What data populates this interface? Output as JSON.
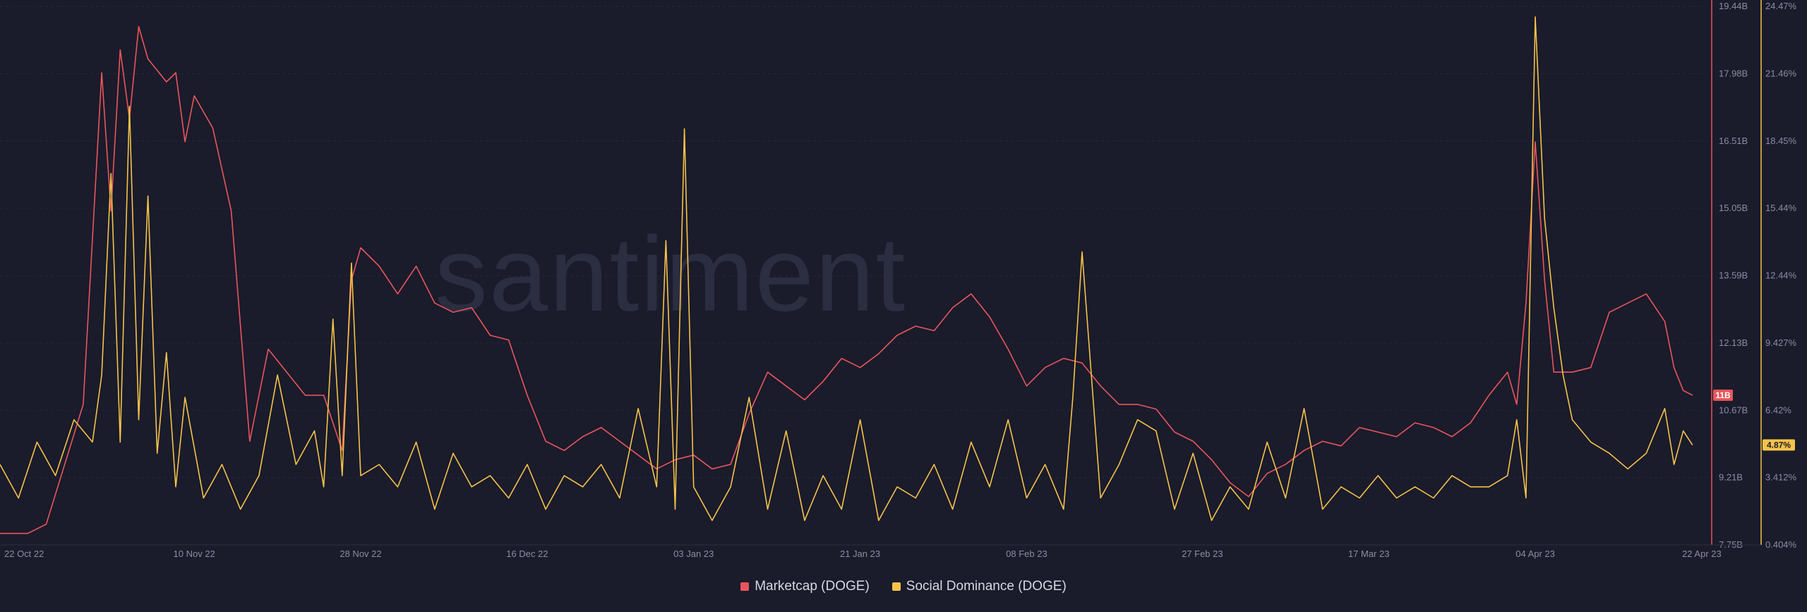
{
  "chart_data": {
    "type": "line",
    "watermark": "santiment",
    "x_ticks": [
      "22 Oct 22",
      "10 Nov 22",
      "28 Nov 22",
      "16 Dec 22",
      "03 Jan 23",
      "21 Jan 23",
      "08 Feb 23",
      "27 Feb 23",
      "17 Mar 23",
      "04 Apr 23",
      "22 Apr 23"
    ],
    "y_left": {
      "ticks": [
        "19.44B",
        "17.98B",
        "16.51B",
        "15.05B",
        "13.59B",
        "12.13B",
        "10.67B",
        "9.21B",
        "7.75B"
      ],
      "range": [
        7.75,
        19.44
      ],
      "unit": "B"
    },
    "y_right": {
      "ticks": [
        "24.47%",
        "21.46%",
        "18.45%",
        "15.44%",
        "12.44%",
        "9.427%",
        "6.42%",
        "3.412%",
        "0.404%"
      ],
      "range": [
        0.404,
        24.47
      ],
      "unit": "%"
    },
    "grid": true,
    "legend_position": "bottom-center",
    "series": [
      {
        "name": "Marketcap (DOGE)",
        "axis": "left",
        "color": "#e8565b",
        "last_value_label": "11B",
        "x": [
          "2022-10-20",
          "2022-10-23",
          "2022-10-25",
          "2022-10-27",
          "2022-10-29",
          "2022-10-31",
          "2022-11-01",
          "2022-11-02",
          "2022-11-03",
          "2022-11-04",
          "2022-11-05",
          "2022-11-07",
          "2022-11-08",
          "2022-11-09",
          "2022-11-10",
          "2022-11-12",
          "2022-11-14",
          "2022-11-16",
          "2022-11-18",
          "2022-11-20",
          "2022-11-22",
          "2022-11-24",
          "2022-11-26",
          "2022-11-27",
          "2022-11-28",
          "2022-11-30",
          "2022-12-02",
          "2022-12-04",
          "2022-12-06",
          "2022-12-08",
          "2022-12-10",
          "2022-12-12",
          "2022-12-14",
          "2022-12-16",
          "2022-12-18",
          "2022-12-20",
          "2022-12-22",
          "2022-12-24",
          "2022-12-26",
          "2022-12-28",
          "2022-12-30",
          "2023-01-01",
          "2023-01-03",
          "2023-01-05",
          "2023-01-07",
          "2023-01-09",
          "2023-01-11",
          "2023-01-13",
          "2023-01-15",
          "2023-01-17",
          "2023-01-19",
          "2023-01-21",
          "2023-01-23",
          "2023-01-25",
          "2023-01-27",
          "2023-01-29",
          "2023-01-31",
          "2023-02-02",
          "2023-02-04",
          "2023-02-06",
          "2023-02-08",
          "2023-02-10",
          "2023-02-12",
          "2023-02-14",
          "2023-02-16",
          "2023-02-18",
          "2023-02-20",
          "2023-02-22",
          "2023-02-24",
          "2023-02-26",
          "2023-02-28",
          "2023-03-02",
          "2023-03-04",
          "2023-03-06",
          "2023-03-08",
          "2023-03-10",
          "2023-03-12",
          "2023-03-14",
          "2023-03-16",
          "2023-03-18",
          "2023-03-20",
          "2023-03-22",
          "2023-03-24",
          "2023-03-26",
          "2023-03-28",
          "2023-03-30",
          "2023-04-01",
          "2023-04-02",
          "2023-04-03",
          "2023-04-04",
          "2023-04-05",
          "2023-04-06",
          "2023-04-08",
          "2023-04-10",
          "2023-04-12",
          "2023-04-14",
          "2023-04-16",
          "2023-04-18",
          "2023-04-19",
          "2023-04-20",
          "2023-04-21"
        ],
        "values": [
          8.0,
          8.0,
          8.2,
          9.5,
          10.8,
          18.0,
          15.0,
          18.5,
          17.0,
          19.0,
          18.3,
          17.8,
          18.0,
          16.5,
          17.5,
          16.8,
          15.0,
          10.0,
          12.0,
          11.5,
          11.0,
          11.0,
          9.8,
          13.5,
          14.2,
          13.8,
          13.2,
          13.8,
          13.0,
          12.8,
          12.9,
          12.3,
          12.2,
          11.0,
          10.0,
          9.8,
          10.1,
          10.3,
          10.0,
          9.7,
          9.4,
          9.6,
          9.7,
          9.4,
          9.5,
          10.6,
          11.5,
          11.2,
          10.9,
          11.3,
          11.8,
          11.6,
          11.9,
          12.3,
          12.5,
          12.4,
          12.9,
          13.2,
          12.7,
          12.0,
          11.2,
          11.6,
          11.8,
          11.7,
          11.2,
          10.8,
          10.8,
          10.7,
          10.2,
          10.0,
          9.6,
          9.1,
          8.8,
          9.3,
          9.5,
          9.8,
          10.0,
          9.9,
          10.3,
          10.2,
          10.1,
          10.4,
          10.3,
          10.1,
          10.4,
          11.0,
          11.5,
          10.8,
          13.0,
          16.5,
          13.5,
          11.5,
          11.5,
          11.6,
          12.8,
          13.0,
          13.2,
          12.6,
          11.6,
          11.1,
          11.0
        ]
      },
      {
        "name": "Social Dominance (DOGE)",
        "axis": "right",
        "color": "#f5c34a",
        "last_value_label": "4.87%",
        "x": [
          "2022-10-20",
          "2022-10-22",
          "2022-10-24",
          "2022-10-26",
          "2022-10-28",
          "2022-10-30",
          "2022-10-31",
          "2022-11-01",
          "2022-11-02",
          "2022-11-03",
          "2022-11-04",
          "2022-11-05",
          "2022-11-06",
          "2022-11-07",
          "2022-11-08",
          "2022-11-09",
          "2022-11-11",
          "2022-11-13",
          "2022-11-15",
          "2022-11-17",
          "2022-11-19",
          "2022-11-21",
          "2022-11-23",
          "2022-11-24",
          "2022-11-25",
          "2022-11-26",
          "2022-11-27",
          "2022-11-28",
          "2022-11-30",
          "2022-12-02",
          "2022-12-04",
          "2022-12-06",
          "2022-12-08",
          "2022-12-10",
          "2022-12-12",
          "2022-12-14",
          "2022-12-16",
          "2022-12-18",
          "2022-12-20",
          "2022-12-22",
          "2022-12-24",
          "2022-12-26",
          "2022-12-28",
          "2022-12-30",
          "2022-12-31",
          "2023-01-01",
          "2023-01-02",
          "2023-01-03",
          "2023-01-05",
          "2023-01-07",
          "2023-01-09",
          "2023-01-11",
          "2023-01-13",
          "2023-01-15",
          "2023-01-17",
          "2023-01-19",
          "2023-01-21",
          "2023-01-23",
          "2023-01-25",
          "2023-01-27",
          "2023-01-29",
          "2023-01-31",
          "2023-02-02",
          "2023-02-04",
          "2023-02-06",
          "2023-02-08",
          "2023-02-10",
          "2023-02-12",
          "2023-02-13",
          "2023-02-14",
          "2023-02-16",
          "2023-02-18",
          "2023-02-20",
          "2023-02-22",
          "2023-02-24",
          "2023-02-26",
          "2023-02-28",
          "2023-03-02",
          "2023-03-04",
          "2023-03-06",
          "2023-03-08",
          "2023-03-10",
          "2023-03-12",
          "2023-03-14",
          "2023-03-16",
          "2023-03-18",
          "2023-03-20",
          "2023-03-22",
          "2023-03-24",
          "2023-03-26",
          "2023-03-28",
          "2023-03-30",
          "2023-04-01",
          "2023-04-02",
          "2023-04-03",
          "2023-04-04",
          "2023-04-05",
          "2023-04-06",
          "2023-04-07",
          "2023-04-08",
          "2023-04-10",
          "2023-04-12",
          "2023-04-14",
          "2023-04-16",
          "2023-04-18",
          "2023-04-19",
          "2023-04-20",
          "2023-04-21"
        ],
        "values": [
          4.0,
          2.5,
          5.0,
          3.5,
          6.0,
          5.0,
          8.0,
          17.0,
          5.0,
          20.0,
          6.0,
          16.0,
          4.5,
          9.0,
          3.0,
          7.0,
          2.5,
          4.0,
          2.0,
          3.5,
          8.0,
          4.0,
          5.5,
          3.0,
          10.5,
          3.5,
          13.0,
          3.5,
          4.0,
          3.0,
          5.0,
          2.0,
          4.5,
          3.0,
          3.5,
          2.5,
          4.0,
          2.0,
          3.5,
          3.0,
          4.0,
          2.5,
          6.5,
          3.0,
          14.0,
          2.0,
          19.0,
          3.0,
          1.5,
          3.0,
          7.0,
          2.0,
          5.5,
          1.5,
          3.5,
          2.0,
          6.0,
          1.5,
          3.0,
          2.5,
          4.0,
          2.0,
          5.0,
          3.0,
          6.0,
          2.5,
          4.0,
          2.0,
          7.0,
          13.5,
          2.5,
          4.0,
          6.0,
          5.5,
          2.0,
          4.5,
          1.5,
          3.0,
          2.0,
          5.0,
          2.5,
          6.5,
          2.0,
          3.0,
          2.5,
          3.5,
          2.5,
          3.0,
          2.5,
          3.5,
          3.0,
          3.0,
          3.5,
          6.0,
          2.5,
          24.0,
          15.0,
          11.0,
          8.0,
          6.0,
          5.0,
          4.5,
          3.8,
          4.5,
          6.5,
          4.0,
          5.5,
          4.87
        ]
      }
    ]
  }
}
